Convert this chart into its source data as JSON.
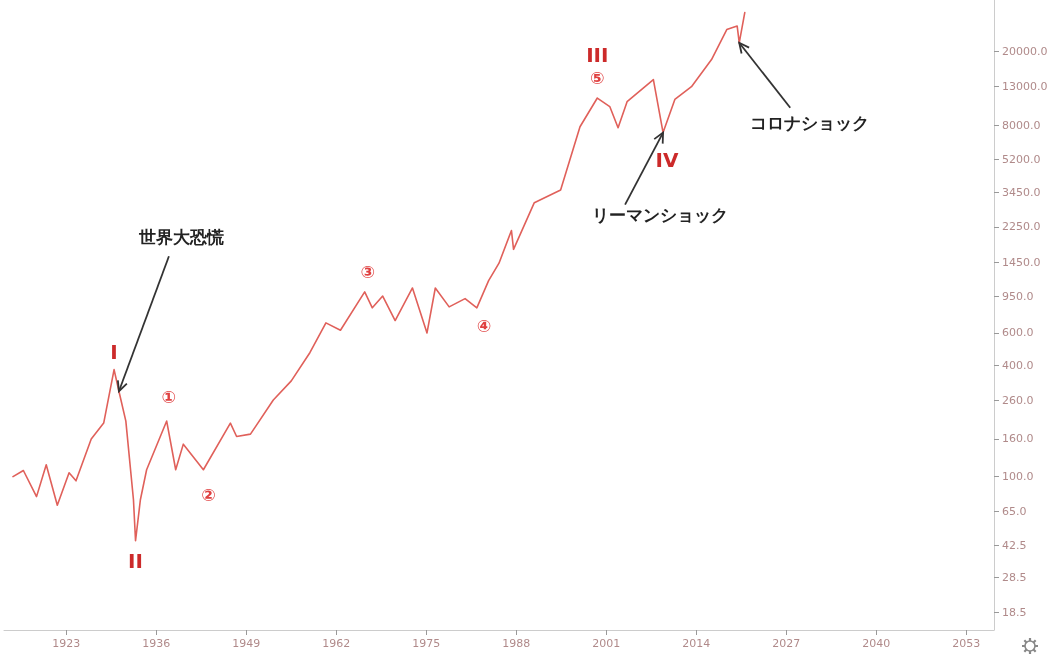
{
  "chart_data": {
    "type": "line",
    "log": "y",
    "marker": "none",
    "line_style": "solid",
    "x": [
      1915.3,
      1916.8,
      1918.7,
      1920.1,
      1921.7,
      1923.4,
      1924.4,
      1926.6,
      1928.4,
      1929.9,
      1930.6,
      1931.6,
      1932.7,
      1933.0,
      1933.7,
      1934.6,
      1937.5,
      1938.8,
      1939.9,
      1942.8,
      1946.7,
      1947.6,
      1949.6,
      1952.9,
      1955.5,
      1958.2,
      1960.5,
      1962.6,
      1966.1,
      1967.2,
      1968.7,
      1970.5,
      1973.0,
      1975.1,
      1976.3,
      1978.3,
      1980.6,
      1982.3,
      1984.0,
      1985.5,
      1987.3,
      1987.6,
      1990.6,
      1994.4,
      1997.2,
      1999.7,
      2001.5,
      2002.7,
      2004.0,
      2007.8,
      2009.2,
      2010.9,
      2013.3,
      2016.2,
      2018.4,
      2019.9,
      2020.2,
      2021.0
    ],
    "series": [
      {
        "color": "#e0605a",
        "values": [
          100,
          108,
          78,
          116,
          70,
          105,
          95,
          160,
          195,
          380,
          290,
          200,
          75,
          45,
          75,
          109,
          200,
          109,
          150,
          109,
          195,
          165,
          170,
          260,
          330,
          470,
          680,
          620,
          1000,
          820,
          950,
          700,
          1050,
          600,
          1050,
          830,
          920,
          820,
          1150,
          1430,
          2150,
          1700,
          3040,
          3560,
          7830,
          11200,
          10070,
          7740,
          10700,
          14100,
          7280,
          11000,
          12900,
          18100,
          26300,
          27500,
          22300,
          32500
        ]
      }
    ],
    "xlim": [
      1914,
      2057
    ],
    "xticks": [
      1923,
      1936,
      1949,
      1962,
      1975,
      1988,
      2001,
      2014,
      2027,
      2040,
      2053
    ],
    "ylim": [
      14.8,
      38000
    ],
    "yticks": [
      {
        "value": 20000,
        "label": "20000.0"
      },
      {
        "value": 13000,
        "label": "13000.0"
      },
      {
        "value": 8000,
        "label": "8000.0"
      },
      {
        "value": 5200,
        "label": "5200.0"
      },
      {
        "value": 3450,
        "label": "3450.0"
      },
      {
        "value": 2250,
        "label": "2250.0"
      },
      {
        "value": 1450,
        "label": "1450.0"
      },
      {
        "value": 950,
        "label": "950.0"
      },
      {
        "value": 600,
        "label": "600.0"
      },
      {
        "value": 400,
        "label": "400.0"
      },
      {
        "value": 260,
        "label": "260.0"
      },
      {
        "value": 160,
        "label": "160.0"
      },
      {
        "value": 100,
        "label": "100.0"
      },
      {
        "value": 65,
        "label": "65.0"
      },
      42.5,
      28.5,
      18.5
    ],
    "annotations": [
      {
        "text": "I",
        "x": 1929.9,
        "y": 380
      },
      {
        "text": "II",
        "x": 1933.0,
        "y": 45
      },
      {
        "text": "①",
        "x": 1937.5,
        "y": 200
      },
      {
        "text": "②",
        "x": 1942.8,
        "y": 109
      },
      {
        "text": "③",
        "x": 1966.1,
        "y": 1000
      },
      {
        "text": "④",
        "x": 1982.3,
        "y": 820
      },
      {
        "text": "III",
        "x": 1999.7,
        "y": 11200
      },
      {
        "text": "⑤",
        "x": 1999.7,
        "y": 11200
      },
      {
        "text": "IV",
        "x": 2009.2,
        "y": 7280
      },
      {
        "text": "世界大恐慌",
        "x": 1930.6,
        "y": 290
      },
      {
        "text": "リーマンショック",
        "x": 2009.2,
        "y": 7280
      },
      {
        "text": "コロナショック",
        "x": 2020.2,
        "y": 22300
      }
    ]
  }
}
